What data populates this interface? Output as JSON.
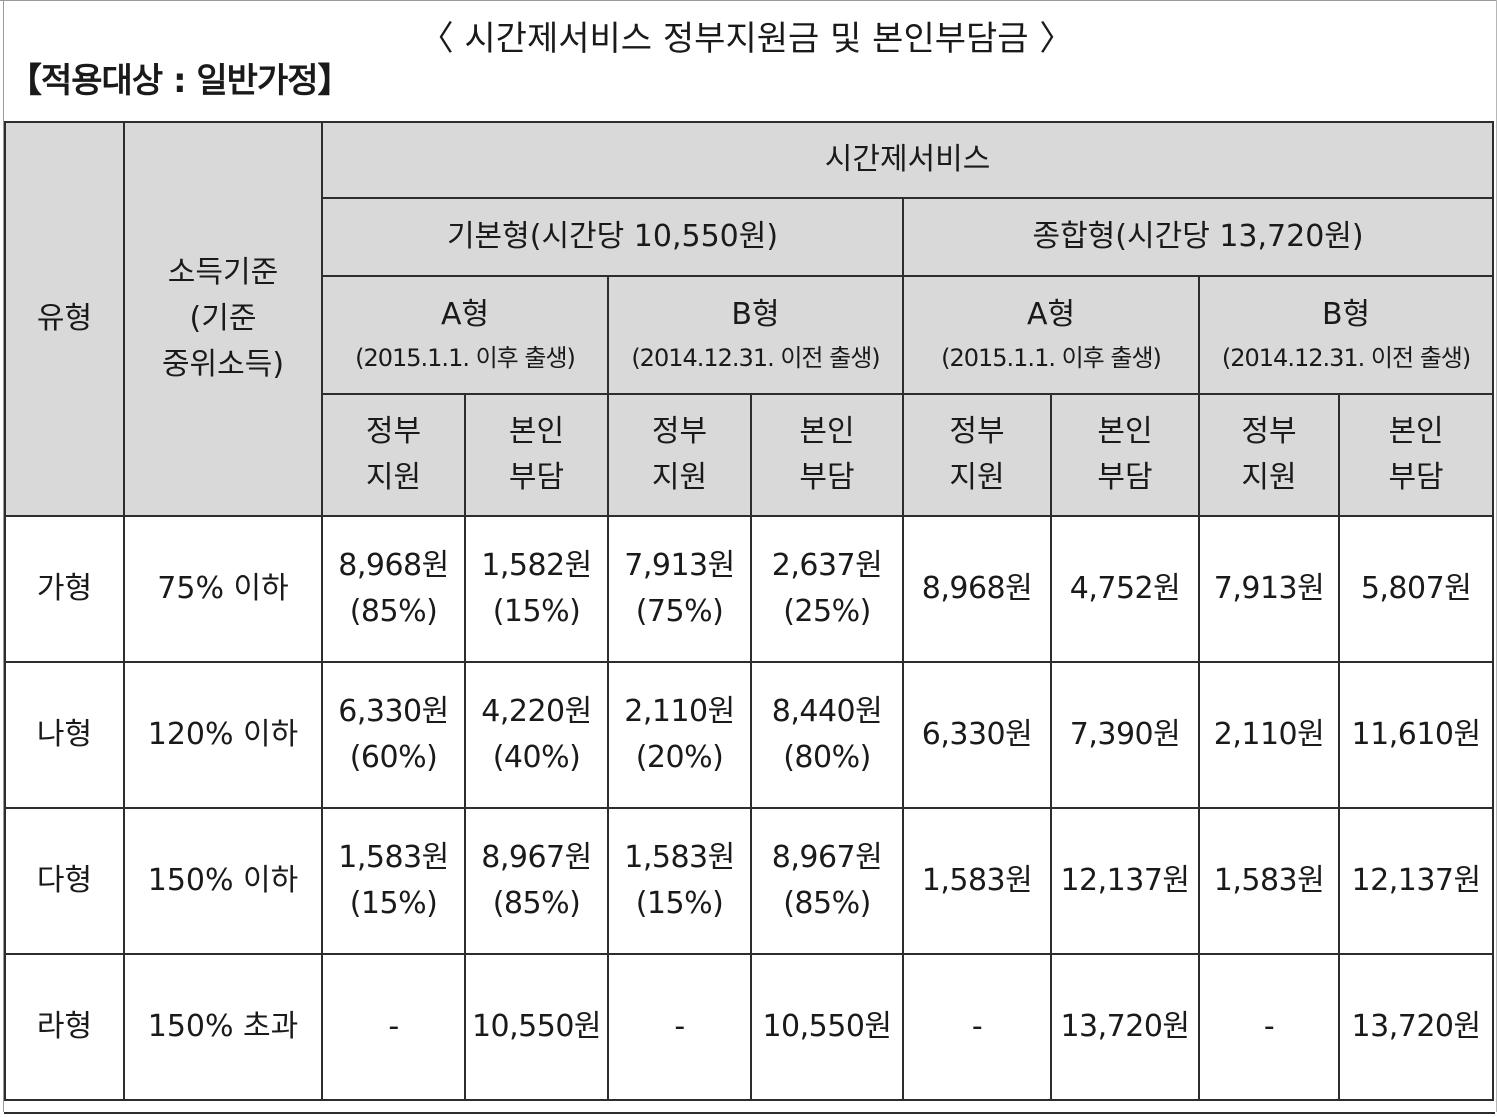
{
  "document": {
    "title": "〈 시간제서비스 정부지원금 및 본인부담금 〉",
    "subtitle": "【적용대상 : 일반가정】"
  },
  "table": {
    "header": {
      "type_label": "유형",
      "income_label": [
        "소득기준",
        "(기준",
        "중위소득)"
      ],
      "service_label": "시간제서비스",
      "plans": [
        {
          "name": "기본형(시간당 10,550원)",
          "groups": [
            {
              "name": "A형",
              "note": "(2015.1.1. 이후 출생)",
              "cols": [
                [
                  "정부",
                  "지원"
                ],
                [
                  "본인",
                  "부담"
                ]
              ]
            },
            {
              "name": "B형",
              "note": "(2014.12.31. 이전 출생)",
              "cols": [
                [
                  "정부",
                  "지원"
                ],
                [
                  "본인",
                  "부담"
                ]
              ]
            }
          ]
        },
        {
          "name": "종합형(시간당 13,720원)",
          "groups": [
            {
              "name": "A형",
              "note": "(2015.1.1. 이후 출생)",
              "cols": [
                [
                  "정부",
                  "지원"
                ],
                [
                  "본인",
                  "부담"
                ]
              ]
            },
            {
              "name": "B형",
              "note": "(2014.12.31. 이전 출생)",
              "cols": [
                [
                  "정부",
                  "지원"
                ],
                [
                  "본인",
                  "부담"
                ]
              ]
            }
          ]
        }
      ]
    },
    "rows": [
      {
        "type": "가형",
        "income": "75% 이하",
        "cells": [
          [
            "8,968원",
            "(85%)"
          ],
          [
            "1,582원",
            "(15%)"
          ],
          [
            "7,913원",
            "(75%)"
          ],
          [
            "2,637원",
            "(25%)"
          ],
          [
            "8,968원"
          ],
          [
            "4,752원"
          ],
          [
            "7,913원"
          ],
          [
            "5,807원"
          ]
        ]
      },
      {
        "type": "나형",
        "income": "120% 이하",
        "cells": [
          [
            "6,330원",
            "(60%)"
          ],
          [
            "4,220원",
            "(40%)"
          ],
          [
            "2,110원",
            "(20%)"
          ],
          [
            "8,440원",
            "(80%)"
          ],
          [
            "6,330원"
          ],
          [
            "7,390원"
          ],
          [
            "2,110원"
          ],
          [
            "11,610원"
          ]
        ]
      },
      {
        "type": "다형",
        "income": "150% 이하",
        "cells": [
          [
            "1,583원",
            "(15%)"
          ],
          [
            "8,967원",
            "(85%)"
          ],
          [
            "1,583원",
            "(15%)"
          ],
          [
            "8,967원",
            "(85%)"
          ],
          [
            "1,583원"
          ],
          [
            "12,137원"
          ],
          [
            "1,583원"
          ],
          [
            "12,137원"
          ]
        ]
      },
      {
        "type": "라형",
        "income": "150% 초과",
        "cells": [
          [
            "-"
          ],
          [
            "10,550원"
          ],
          [
            "-"
          ],
          [
            "10,550원"
          ],
          [
            "-"
          ],
          [
            "13,720원"
          ],
          [
            "-"
          ],
          [
            "13,720원"
          ]
        ]
      }
    ]
  }
}
